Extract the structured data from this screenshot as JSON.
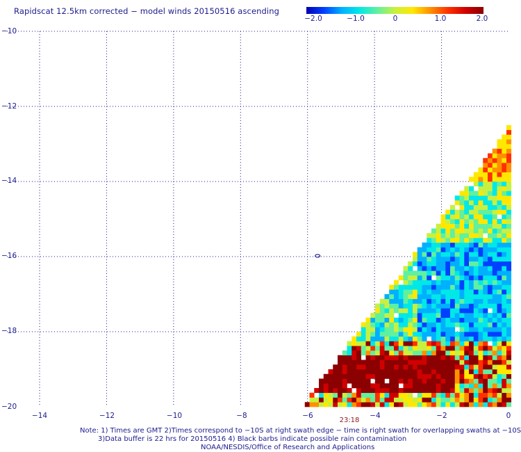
{
  "title": "Rapidscat 12.5km corrected − model winds 20150516 ascending",
  "colorbar": {
    "ticks": [
      "−2.0",
      "−1.0",
      "0",
      "1.0",
      "2.0"
    ],
    "colors": [
      "#0000b4",
      "#0040ff",
      "#00b0ff",
      "#00e8e8",
      "#60f0a0",
      "#c8f040",
      "#ffe800",
      "#ff9000",
      "#ff3000",
      "#d00000",
      "#8b0000"
    ]
  },
  "axes": {
    "x_ticks": [
      "−14",
      "−12",
      "−10",
      "−8",
      "−6",
      "−4",
      "−2",
      "0"
    ],
    "y_ticks": [
      "−10",
      "−12",
      "−14",
      "−16",
      "−18",
      "−20"
    ],
    "lon_range": [
      -15,
      0
    ],
    "lat_range": [
      -20,
      -10
    ],
    "grid": "dotted"
  },
  "swath_time": "23:18",
  "notes": [
    "Note: 1) Times are GMT 2)Times correspond to −10S at right swath edge − time is right swath for overlapping swaths at −10S",
    "3)Data buffer is 22 hrs for 20150516 4) Black barbs indicate possible rain contamination",
    "NOAA/NESDIS/Office of Research and Applications"
  ]
}
